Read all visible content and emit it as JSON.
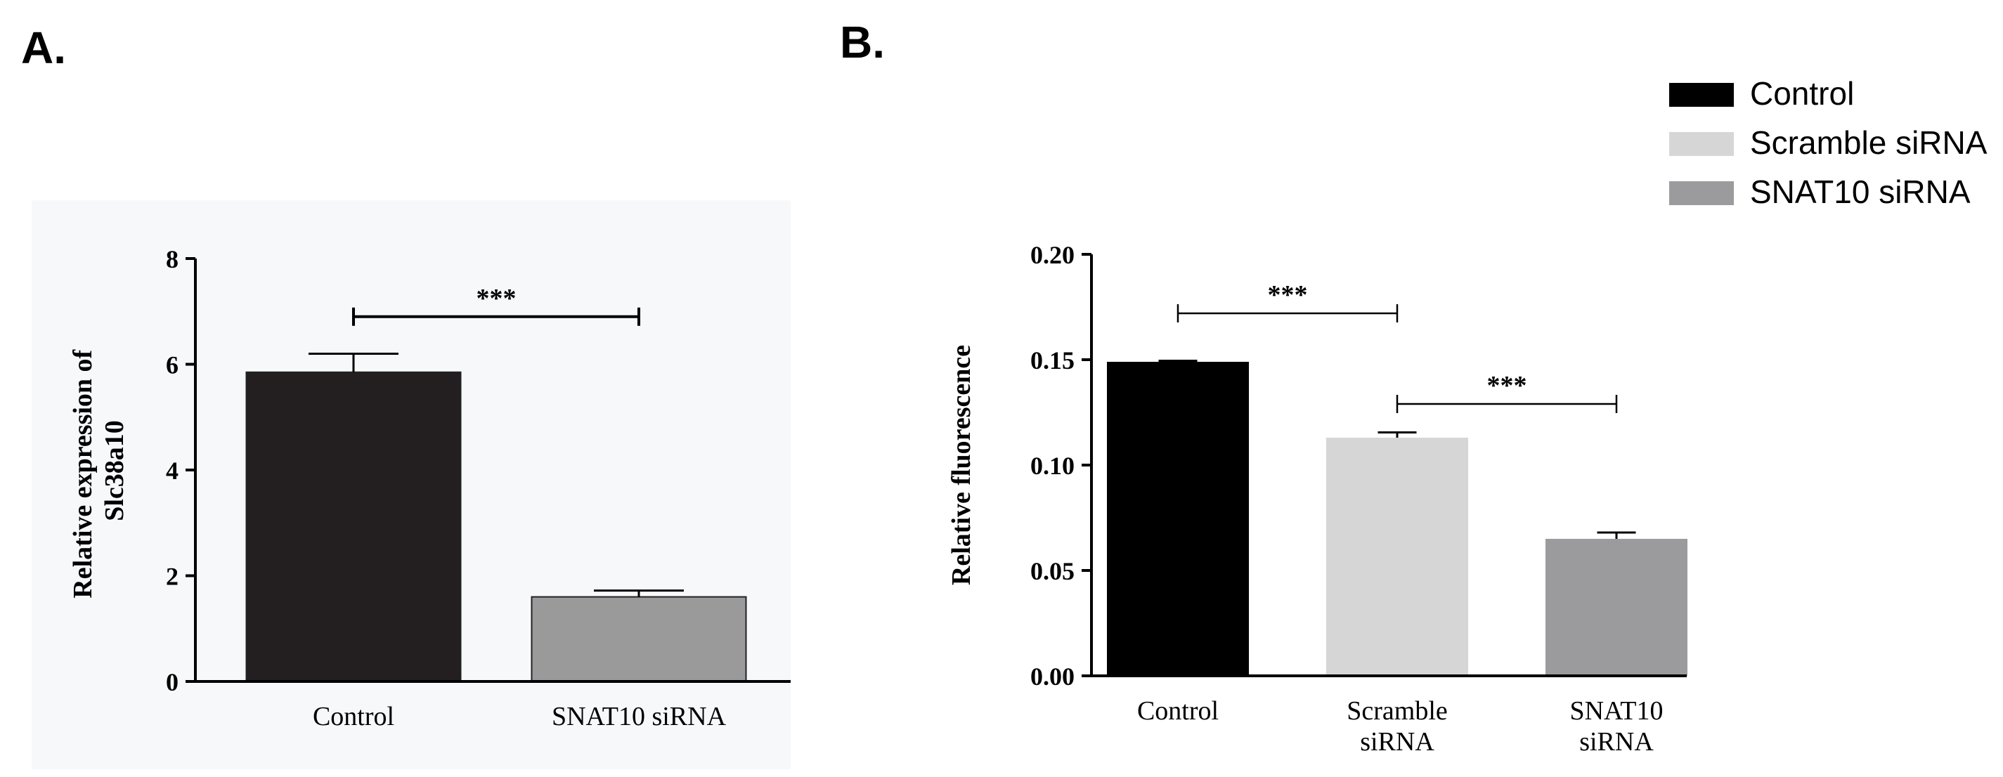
{
  "figure": {
    "panel_a_letter": "A.",
    "panel_b_letter": "B."
  },
  "chart_data": [
    {
      "type": "bar",
      "panel": "A.",
      "title": "",
      "xlabel": "",
      "ylabel_lines": [
        "Relative expression of",
        "Slc38a10"
      ],
      "ylim": [
        0,
        8
      ],
      "yticks": [
        0,
        2,
        4,
        6,
        8
      ],
      "ytick_labels": [
        "0",
        "2",
        "4",
        "6",
        "8"
      ],
      "categories": [
        [
          "Control"
        ],
        [
          "SNAT10 siRNA"
        ]
      ],
      "values": [
        5.85,
        1.6
      ],
      "errors": [
        0.35,
        0.12
      ],
      "bar_colors": [
        "#231f20",
        "#9a9a9a"
      ],
      "background": "#f7f8fa",
      "significance": [
        {
          "from": 0,
          "to": 1,
          "label": "***",
          "y": 6.9
        }
      ]
    },
    {
      "type": "bar",
      "panel": "B.",
      "title": "",
      "xlabel": "",
      "ylabel_lines": [
        "Relative  fluorescence"
      ],
      "ylim": [
        0,
        0.2
      ],
      "yticks": [
        0,
        0.05,
        0.1,
        0.15,
        0.2
      ],
      "ytick_labels": [
        "0.00",
        "0.05",
        "0.10",
        "0.15",
        "0.20"
      ],
      "categories": [
        [
          "Control"
        ],
        [
          "Scramble",
          "siRNA"
        ],
        [
          "SNAT10",
          "siRNA"
        ]
      ],
      "values": [
        0.149,
        0.113,
        0.065
      ],
      "errors": [
        0.0005,
        0.0025,
        0.003
      ],
      "bar_colors": [
        "#000000",
        "#d6d6d6",
        "#9b9b9d"
      ],
      "background": "#ffffff",
      "significance": [
        {
          "from": 0,
          "to": 1,
          "label": "***",
          "y": 0.172
        },
        {
          "from": 1,
          "to": 2,
          "label": "***",
          "y": 0.129
        }
      ],
      "legend": {
        "position": "top-right",
        "entries": [
          {
            "label": "Control",
            "color": "#000000"
          },
          {
            "label": "Scramble siRNA",
            "color": "#d6d6d6"
          },
          {
            "label": "SNAT10 siRNA",
            "color": "#9b9b9d"
          }
        ]
      }
    }
  ]
}
